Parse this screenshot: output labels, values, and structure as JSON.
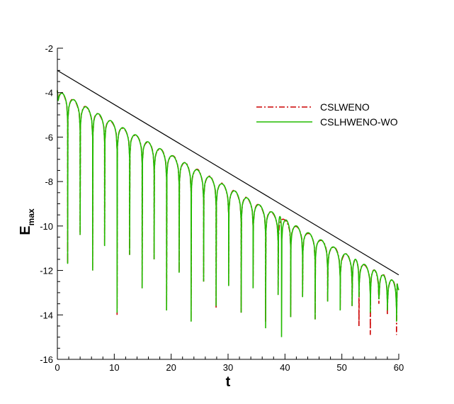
{
  "chart_data": {
    "type": "line",
    "xlabel": "t",
    "ylabel": "E",
    "ylabel_sub": "max",
    "xlim": [
      0,
      60
    ],
    "ylim": [
      -16,
      -2
    ],
    "xticks": [
      0,
      10,
      20,
      30,
      40,
      50,
      60
    ],
    "yticks": [
      -2,
      -4,
      -6,
      -8,
      -10,
      -12,
      -14,
      -16
    ],
    "xtick_labels": [
      "0",
      "10",
      "20",
      "30",
      "40",
      "50",
      "60"
    ],
    "ytick_labels": [
      "-2",
      "-4",
      "-6",
      "-8",
      "-10",
      "-12",
      "-14",
      "-16"
    ],
    "grid": false,
    "legend_position": "top-right",
    "reference_line": {
      "x": [
        0,
        60
      ],
      "y": [
        -3.0,
        -12.2
      ],
      "color": "#000000"
    },
    "series": [
      {
        "name": "CSLWENO",
        "color": "#cc0000",
        "style": "dash-dot",
        "envelope": {
          "x": [
            0,
            60
          ],
          "y": [
            -3.9,
            -12.6
          ]
        },
        "spike_minima": [
          {
            "x": 1.8,
            "y": -11.7
          },
          {
            "x": 4.0,
            "y": -10.4
          },
          {
            "x": 6.2,
            "y": -12.0
          },
          {
            "x": 8.3,
            "y": -10.9
          },
          {
            "x": 10.5,
            "y": -14.0
          },
          {
            "x": 12.7,
            "y": -11.3
          },
          {
            "x": 14.9,
            "y": -12.8
          },
          {
            "x": 17.0,
            "y": -11.5
          },
          {
            "x": 19.2,
            "y": -13.8
          },
          {
            "x": 21.4,
            "y": -12.1
          },
          {
            "x": 23.5,
            "y": -14.3
          },
          {
            "x": 25.7,
            "y": -12.5
          },
          {
            "x": 27.9,
            "y": -13.7
          },
          {
            "x": 30.1,
            "y": -12.7
          },
          {
            "x": 32.3,
            "y": -13.9
          },
          {
            "x": 34.4,
            "y": -12.8
          },
          {
            "x": 36.6,
            "y": -14.3
          },
          {
            "x": 38.8,
            "y": -13.1
          },
          {
            "x": 41.0,
            "y": -14.1
          },
          {
            "x": 43.1,
            "y": -13.2
          },
          {
            "x": 45.3,
            "y": -14.2
          },
          {
            "x": 47.5,
            "y": -13.4
          },
          {
            "x": 49.7,
            "y": -13.8
          },
          {
            "x": 51.8,
            "y": -13.6
          },
          {
            "x": 53.0,
            "y": -14.5
          },
          {
            "x": 55.0,
            "y": -14.9
          },
          {
            "x": 56.5,
            "y": -13.5
          },
          {
            "x": 58.0,
            "y": -14.0
          },
          {
            "x": 59.6,
            "y": -14.9
          }
        ]
      },
      {
        "name": "CSLHWENO-WO",
        "color": "#22bb00",
        "style": "solid",
        "envelope": {
          "x": [
            0,
            60
          ],
          "y": [
            -3.9,
            -12.6
          ]
        },
        "spike_minima": [
          {
            "x": 1.8,
            "y": -11.7
          },
          {
            "x": 4.0,
            "y": -10.4
          },
          {
            "x": 6.2,
            "y": -12.0
          },
          {
            "x": 8.3,
            "y": -10.9
          },
          {
            "x": 10.5,
            "y": -13.9
          },
          {
            "x": 12.7,
            "y": -11.3
          },
          {
            "x": 14.9,
            "y": -12.8
          },
          {
            "x": 17.0,
            "y": -11.5
          },
          {
            "x": 19.2,
            "y": -13.8
          },
          {
            "x": 21.4,
            "y": -12.1
          },
          {
            "x": 23.5,
            "y": -14.3
          },
          {
            "x": 25.7,
            "y": -12.5
          },
          {
            "x": 27.9,
            "y": -13.6
          },
          {
            "x": 30.1,
            "y": -12.7
          },
          {
            "x": 32.3,
            "y": -13.9
          },
          {
            "x": 34.4,
            "y": -12.8
          },
          {
            "x": 36.6,
            "y": -14.6
          },
          {
            "x": 38.8,
            "y": -13.1
          },
          {
            "x": 39.4,
            "y": -15.0
          },
          {
            "x": 41.0,
            "y": -14.1
          },
          {
            "x": 43.1,
            "y": -13.2
          },
          {
            "x": 45.3,
            "y": -14.2
          },
          {
            "x": 47.5,
            "y": -13.4
          },
          {
            "x": 49.7,
            "y": -13.8
          },
          {
            "x": 51.8,
            "y": -13.6
          },
          {
            "x": 53.0,
            "y": -13.2
          },
          {
            "x": 55.0,
            "y": -13.9
          },
          {
            "x": 56.5,
            "y": -13.3
          },
          {
            "x": 58.0,
            "y": -13.8
          },
          {
            "x": 59.6,
            "y": -14.3
          }
        ]
      }
    ]
  }
}
